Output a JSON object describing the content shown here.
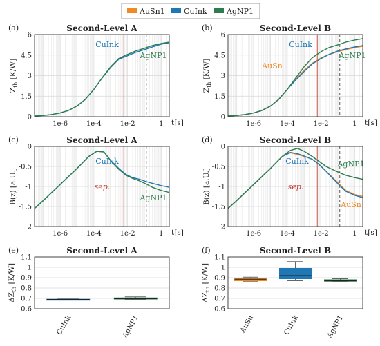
{
  "legend": {
    "entries": [
      {
        "name": "AuSn1",
        "color": "#f08a24"
      },
      {
        "name": "CuInk",
        "color": "#1f77b4"
      },
      {
        "name": "AgNP1",
        "color": "#2e7d4f"
      }
    ]
  },
  "colors": {
    "separator": "#c0392b",
    "dashed": "#444444",
    "grid": "#d8d8d8"
  },
  "chart_data": [
    {
      "id": "a",
      "panel_label": "(a)",
      "type": "line",
      "title": "Second-Level A",
      "ylabel": "Z_th [K/W]",
      "xlabel": "t[s]",
      "xscale": "log",
      "xlim": [
        3e-08,
        3
      ],
      "ylim": [
        0,
        6
      ],
      "xticks": [
        "1e-6",
        "1e-4",
        "1e-2",
        "1"
      ],
      "yticks": [
        "0",
        "1.5",
        "3",
        "4.5",
        "6"
      ],
      "grid": true,
      "vlines": [
        {
          "x": 0.006,
          "style": "solid",
          "color": "red"
        },
        {
          "x": 0.13,
          "style": "dashed",
          "color": "black"
        }
      ],
      "series": [
        {
          "name": "CuInk",
          "x": [
            3e-08,
            1e-07,
            3e-07,
            1e-06,
            3e-06,
            1e-05,
            3e-05,
            0.0001,
            0.0003,
            0.001,
            0.003,
            0.01,
            0.03,
            0.1,
            0.3,
            1,
            3
          ],
          "y": [
            0.05,
            0.09,
            0.15,
            0.27,
            0.45,
            0.78,
            1.25,
            2.0,
            2.8,
            3.6,
            4.2,
            4.45,
            4.7,
            4.9,
            5.1,
            5.3,
            5.4
          ]
        },
        {
          "name": "AgNP1",
          "x": [
            3e-08,
            1e-07,
            3e-07,
            1e-06,
            3e-06,
            1e-05,
            3e-05,
            0.0001,
            0.0003,
            0.001,
            0.003,
            0.01,
            0.03,
            0.1,
            0.3,
            1,
            3
          ],
          "y": [
            0.05,
            0.09,
            0.15,
            0.27,
            0.45,
            0.78,
            1.25,
            2.0,
            2.82,
            3.65,
            4.25,
            4.55,
            4.8,
            5.0,
            5.2,
            5.35,
            5.45
          ]
        }
      ],
      "annotations": [
        {
          "text": "CuInk",
          "color": "#1f77b4"
        },
        {
          "text": "AgNP1",
          "color": "#2e7d4f"
        }
      ]
    },
    {
      "id": "b",
      "panel_label": "(b)",
      "type": "line",
      "title": "Second-Level B",
      "ylabel": "Z_th [K/W]",
      "xlabel": "t[s]",
      "xscale": "log",
      "xlim": [
        3e-08,
        3
      ],
      "ylim": [
        0,
        6
      ],
      "xticks": [
        "1e-6",
        "1e-4",
        "1e-2",
        "1"
      ],
      "yticks": [
        "0",
        "1.5",
        "3",
        "4.5",
        "6"
      ],
      "grid": true,
      "vlines": [
        {
          "x": 0.006,
          "style": "solid",
          "color": "red"
        },
        {
          "x": 0.13,
          "style": "dashed",
          "color": "black"
        }
      ],
      "series": [
        {
          "name": "AuSn1",
          "x": [
            3e-08,
            1e-07,
            3e-07,
            1e-06,
            3e-06,
            1e-05,
            3e-05,
            0.0001,
            0.0003,
            0.001,
            0.003,
            0.01,
            0.03,
            0.1,
            0.3,
            1,
            3
          ],
          "y": [
            0.05,
            0.09,
            0.15,
            0.27,
            0.45,
            0.78,
            1.25,
            2.0,
            2.7,
            3.4,
            3.9,
            4.3,
            4.55,
            4.75,
            4.9,
            5.05,
            5.15
          ]
        },
        {
          "name": "CuInk",
          "x": [
            3e-08,
            1e-07,
            3e-07,
            1e-06,
            3e-06,
            1e-05,
            3e-05,
            0.0001,
            0.0003,
            0.001,
            0.003,
            0.01,
            0.03,
            0.1,
            0.3,
            1,
            3
          ],
          "y": [
            0.05,
            0.09,
            0.15,
            0.27,
            0.45,
            0.78,
            1.25,
            2.0,
            2.65,
            3.3,
            3.85,
            4.25,
            4.55,
            4.8,
            4.95,
            5.1,
            5.2
          ]
        },
        {
          "name": "AgNP1",
          "x": [
            3e-08,
            1e-07,
            3e-07,
            1e-06,
            3e-06,
            1e-05,
            3e-05,
            0.0001,
            0.0003,
            0.001,
            0.003,
            0.01,
            0.03,
            0.1,
            0.3,
            1,
            3
          ],
          "y": [
            0.05,
            0.09,
            0.15,
            0.27,
            0.45,
            0.78,
            1.25,
            2.0,
            2.8,
            3.65,
            4.3,
            4.75,
            5.05,
            5.25,
            5.45,
            5.6,
            5.7
          ]
        }
      ],
      "annotations": [
        {
          "text": "CuInk",
          "color": "#1f77b4"
        },
        {
          "text": "AuSn",
          "color": "#f08a24"
        },
        {
          "text": "AgNP1",
          "color": "#2e7d4f"
        }
      ]
    },
    {
      "id": "c",
      "panel_label": "(c)",
      "type": "line",
      "title": "Second-Level A",
      "ylabel": "B(z) [a.U.]",
      "xlabel": "t[s]",
      "xscale": "log",
      "xlim": [
        3e-08,
        3
      ],
      "ylim": [
        -2,
        0
      ],
      "xticks": [
        "1e-6",
        "1e-4",
        "1e-2",
        "1"
      ],
      "yticks": [
        "-2",
        "-1.5",
        "-1",
        "-0.5",
        "0"
      ],
      "grid": true,
      "vlines": [
        {
          "x": 0.006,
          "style": "solid",
          "color": "red"
        },
        {
          "x": 0.13,
          "style": "dashed",
          "color": "black"
        }
      ],
      "series": [
        {
          "name": "CuInk",
          "x": [
            3e-08,
            1e-07,
            1e-06,
            1e-05,
            5e-05,
            0.00015,
            0.0004,
            0.001,
            0.003,
            0.008,
            0.02,
            0.05,
            0.13,
            0.3,
            1,
            3
          ],
          "y": [
            -1.55,
            -1.35,
            -0.95,
            -0.55,
            -0.25,
            -0.12,
            -0.14,
            -0.35,
            -0.55,
            -0.7,
            -0.78,
            -0.82,
            -0.88,
            -0.92,
            -0.98,
            -1.02
          ]
        },
        {
          "name": "AgNP1",
          "x": [
            3e-08,
            1e-07,
            1e-06,
            1e-05,
            5e-05,
            0.00015,
            0.0004,
            0.001,
            0.003,
            0.008,
            0.02,
            0.05,
            0.13,
            0.3,
            1,
            3
          ],
          "y": [
            -1.55,
            -1.35,
            -0.95,
            -0.55,
            -0.25,
            -0.12,
            -0.14,
            -0.36,
            -0.57,
            -0.72,
            -0.8,
            -0.86,
            -0.94,
            -1.02,
            -1.1,
            -1.15
          ]
        }
      ],
      "annotations": [
        {
          "text": "CuInk",
          "color": "#1f77b4"
        },
        {
          "text": "sep.",
          "color": "#c0392b"
        },
        {
          "text": "AgNP1",
          "color": "#2e7d4f"
        }
      ]
    },
    {
      "id": "d",
      "panel_label": "(d)",
      "type": "line",
      "title": "Second-Level B",
      "ylabel": "B(z) [a.U.]",
      "xlabel": "t[s]",
      "xscale": "log",
      "xlim": [
        3e-08,
        3
      ],
      "ylim": [
        -2,
        0
      ],
      "xticks": [
        "1e-6",
        "1e-4",
        "1e-2",
        "1"
      ],
      "yticks": [
        "-2",
        "-1.5",
        "-1",
        "-0.5",
        "0"
      ],
      "grid": true,
      "vlines": [
        {
          "x": 0.006,
          "style": "solid",
          "color": "red"
        },
        {
          "x": 0.13,
          "style": "dashed",
          "color": "black"
        }
      ],
      "series": [
        {
          "name": "AuSn1",
          "x": [
            3e-08,
            1e-07,
            1e-06,
            1e-05,
            5e-05,
            0.00015,
            0.0004,
            0.001,
            0.003,
            0.008,
            0.02,
            0.05,
            0.13,
            0.3,
            1,
            3
          ],
          "y": [
            -1.55,
            -1.35,
            -0.95,
            -0.55,
            -0.25,
            -0.16,
            -0.2,
            -0.25,
            -0.32,
            -0.45,
            -0.62,
            -0.78,
            -0.95,
            -1.1,
            -1.2,
            -1.25
          ]
        },
        {
          "name": "CuInk",
          "x": [
            3e-08,
            1e-07,
            1e-06,
            1e-05,
            5e-05,
            0.00015,
            0.0004,
            0.001,
            0.003,
            0.008,
            0.02,
            0.05,
            0.13,
            0.3,
            1,
            3
          ],
          "y": [
            -1.55,
            -1.35,
            -0.95,
            -0.55,
            -0.25,
            -0.15,
            -0.18,
            -0.24,
            -0.32,
            -0.46,
            -0.62,
            -0.8,
            -0.98,
            -1.12,
            -1.22,
            -1.28
          ]
        },
        {
          "name": "AgNP1",
          "x": [
            3e-08,
            1e-07,
            1e-06,
            1e-05,
            5e-05,
            0.00015,
            0.0004,
            0.001,
            0.003,
            0.008,
            0.02,
            0.05,
            0.13,
            0.3,
            1,
            3
          ],
          "y": [
            -1.55,
            -1.35,
            -0.95,
            -0.55,
            -0.25,
            -0.1,
            -0.05,
            -0.12,
            -0.25,
            -0.38,
            -0.5,
            -0.58,
            -0.66,
            -0.72,
            -0.78,
            -0.82
          ]
        }
      ],
      "annotations": [
        {
          "text": "CuInk",
          "color": "#1f77b4"
        },
        {
          "text": "sep.",
          "color": "#c0392b"
        },
        {
          "text": "AgNP1",
          "color": "#2e7d4f"
        },
        {
          "text": "AuSn",
          "color": "#f08a24"
        }
      ]
    },
    {
      "id": "e",
      "panel_label": "(e)",
      "type": "box",
      "title": "Second-Level A",
      "ylabel": "ΔZ_th [K/W]",
      "ylim": [
        0.6,
        1.1
      ],
      "yticks": [
        "0.6",
        "0.7",
        "0.8",
        "0.9",
        "1",
        "1.1"
      ],
      "grid": true,
      "categories": [
        "CuInk",
        "AgNP1"
      ],
      "boxes": [
        {
          "name": "CuInk",
          "color": "#1f77b4",
          "min": 0.685,
          "q1": 0.688,
          "median": 0.69,
          "q3": 0.692,
          "max": 0.695
        },
        {
          "name": "AgNP1",
          "color": "#2e7d4f",
          "min": 0.69,
          "q1": 0.693,
          "median": 0.697,
          "q3": 0.705,
          "max": 0.715
        }
      ]
    },
    {
      "id": "f",
      "panel_label": "(f)",
      "type": "box",
      "title": "Second-Level B",
      "ylabel": "ΔZ_th [K/W]",
      "ylim": [
        0.6,
        1.1
      ],
      "yticks": [
        "0.6",
        "0.7",
        "0.8",
        "0.9",
        "1",
        "1.1"
      ],
      "grid": true,
      "categories": [
        "AuSn",
        "CuInk",
        "AgNP1"
      ],
      "boxes": [
        {
          "name": "AuSn",
          "color": "#f08a24",
          "min": 0.865,
          "q1": 0.87,
          "median": 0.885,
          "q3": 0.895,
          "max": 0.905
        },
        {
          "name": "CuInk",
          "color": "#1f77b4",
          "min": 0.87,
          "q1": 0.89,
          "median": 0.92,
          "q3": 0.99,
          "max": 1.055
        },
        {
          "name": "AgNP1",
          "color": "#2e7d4f",
          "min": 0.86,
          "q1": 0.865,
          "median": 0.87,
          "q3": 0.88,
          "max": 0.89
        }
      ]
    }
  ]
}
